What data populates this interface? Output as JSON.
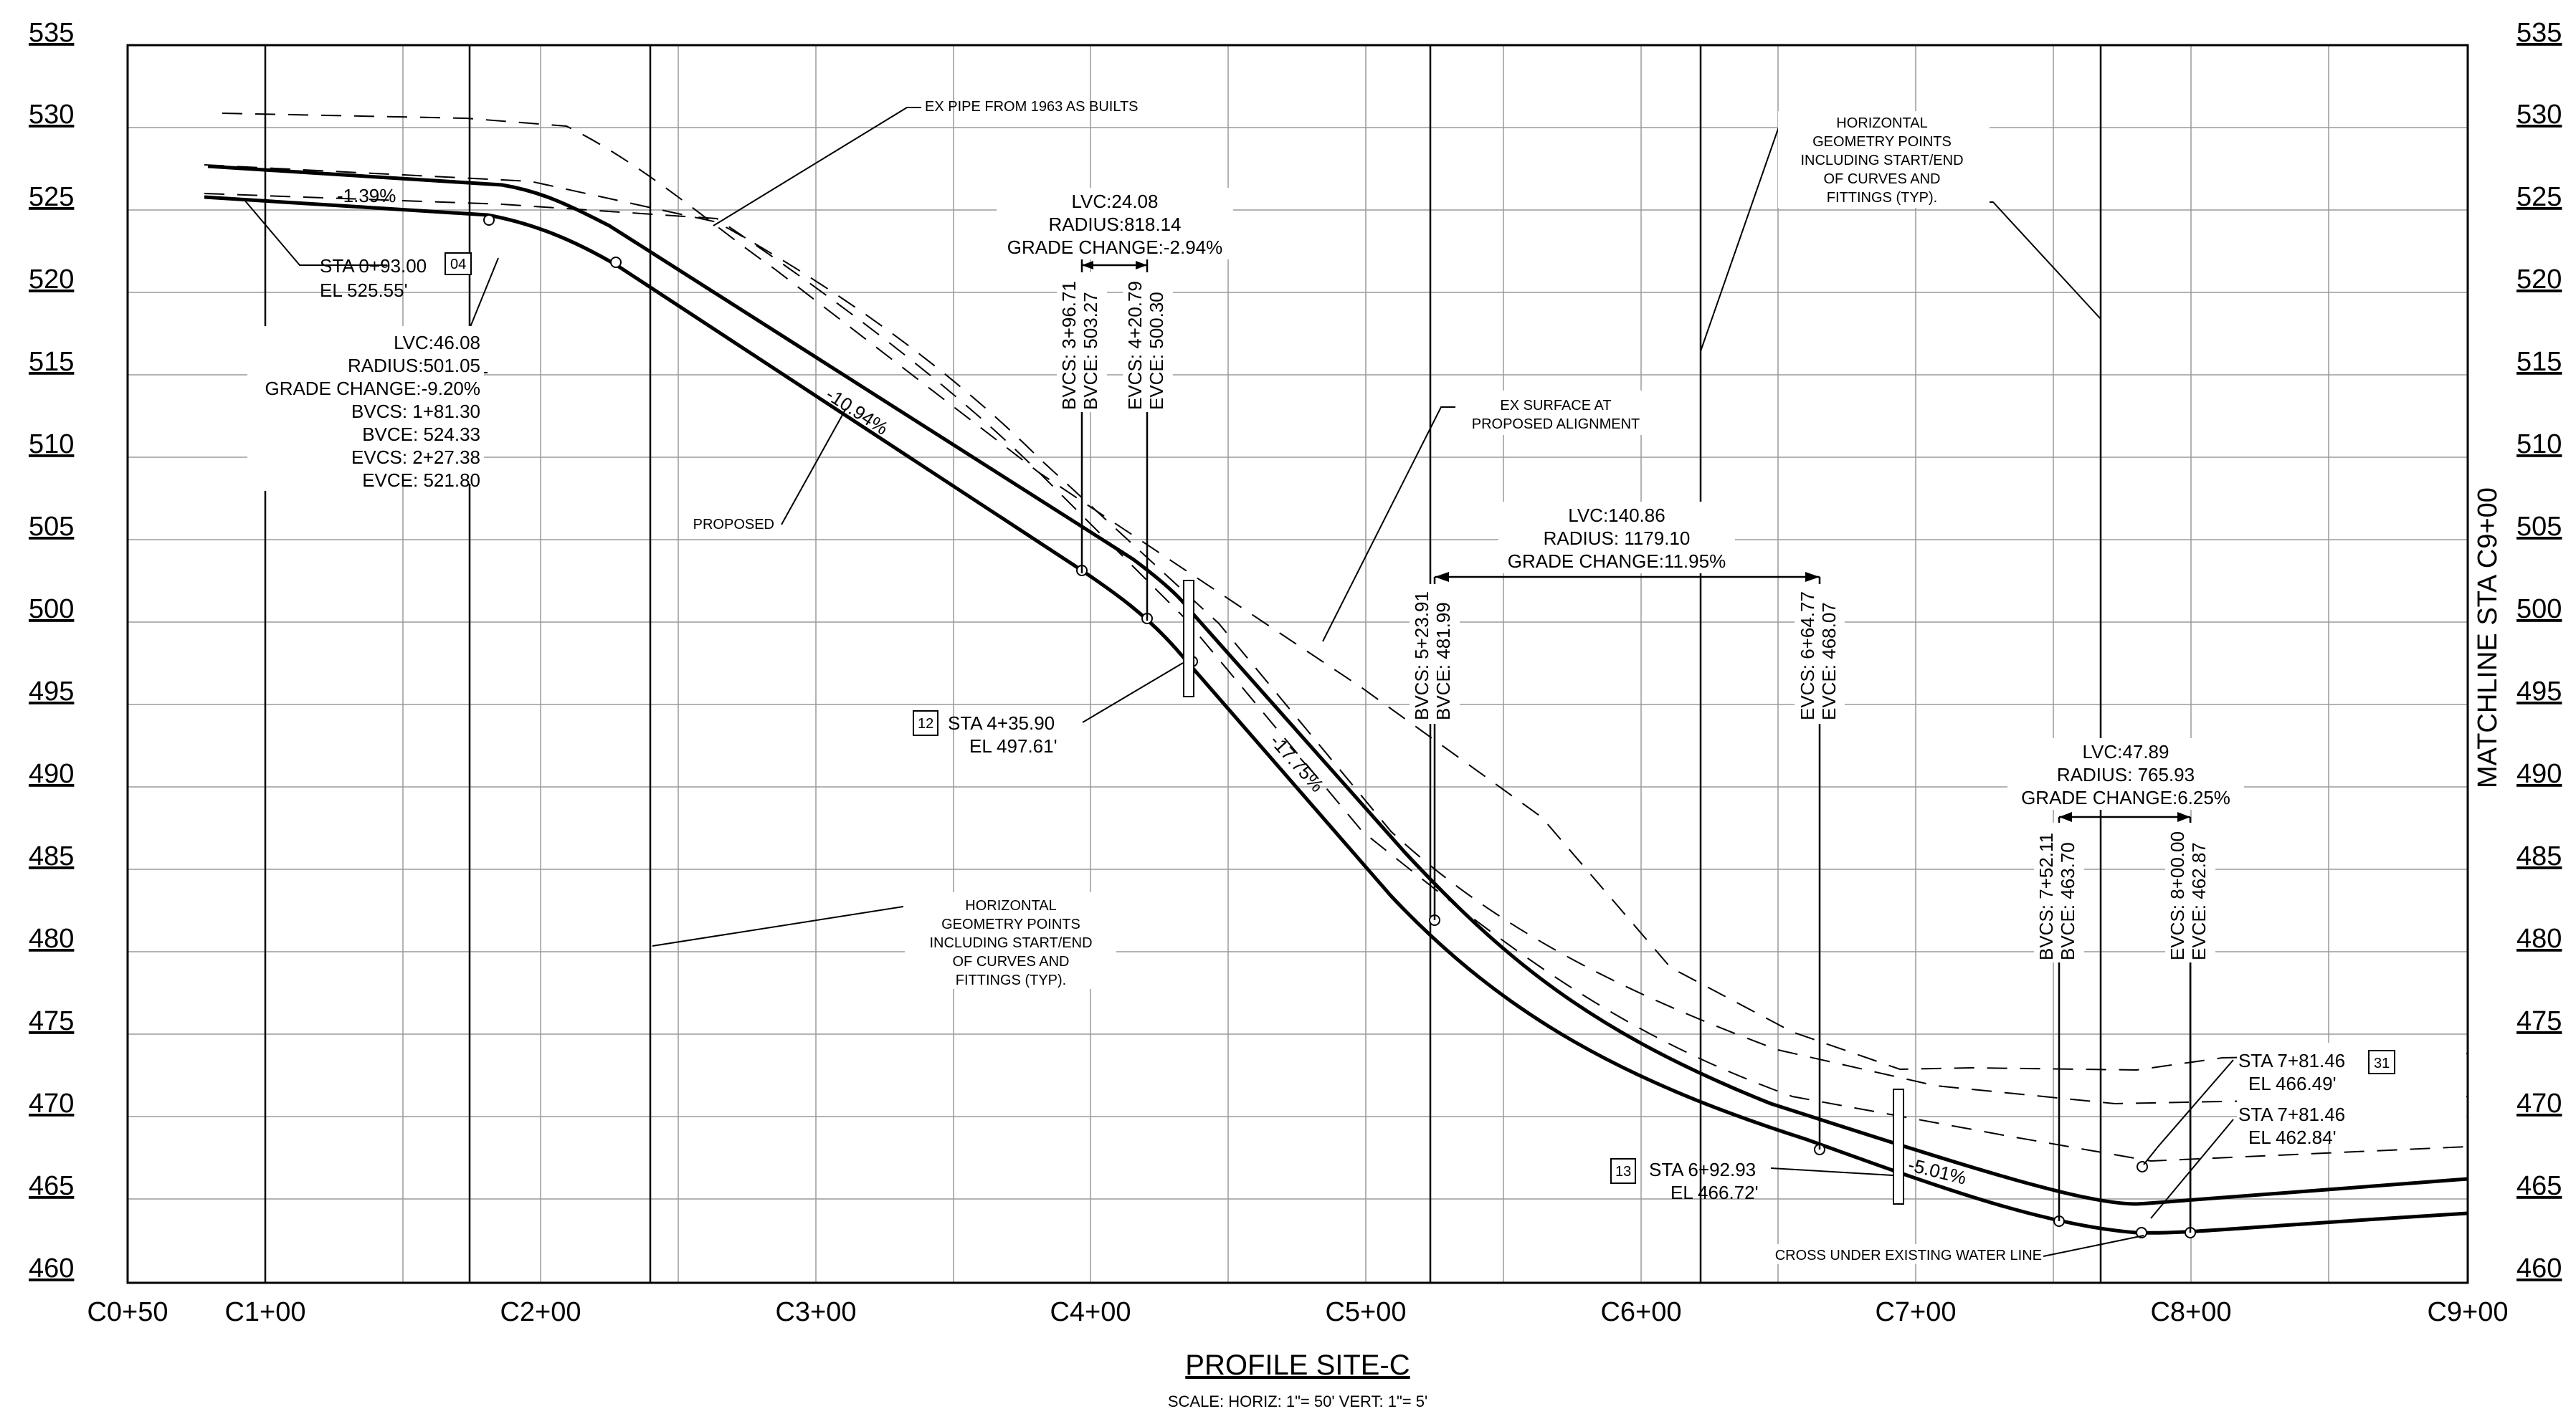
{
  "profile": {
    "title": "PROFILE SITE-C",
    "scale": "SCALE: HORIZ: 1\"= 50'  VERT: 1\"= 5'",
    "matchline": "MATCHLINE STA C9+00",
    "elevations": [
      "535",
      "530",
      "525",
      "520",
      "515",
      "510",
      "505",
      "500",
      "495",
      "490",
      "485",
      "480",
      "475",
      "470",
      "465",
      "460"
    ],
    "stations": [
      "C0+50",
      "C1+00",
      "C2+00",
      "C3+00",
      "C4+00",
      "C5+00",
      "C6+00",
      "C7+00",
      "C8+00",
      "C9+00"
    ]
  },
  "callouts": {
    "ex_pipe": "EX PIPE FROM 1963 AS BUILTS",
    "horiz_top": [
      "HORIZONTAL",
      "GEOMETRY POINTS",
      "INCLUDING START/END",
      "OF CURVES AND",
      "FITTINGS (TYP)."
    ],
    "horiz_bottom": [
      "HORIZONTAL",
      "GEOMETRY POINTS",
      "INCLUDING START/END",
      "OF CURVES AND",
      "FITTINGS (TYP)."
    ],
    "ex_surface": [
      "EX SURFACE AT",
      "PROPOSED ALIGNMENT"
    ],
    "proposed": "PROPOSED",
    "cross_under": "CROSS UNDER EXISTING WATER LINE"
  },
  "grades": {
    "g1": "-1.39%",
    "g2": "-10.94%",
    "g3": "-17.75%",
    "g4": "-5.01%"
  },
  "stations_points": {
    "p04": {
      "tag": "04",
      "sta": "STA 0+93.00",
      "el": "EL 525.55'"
    },
    "p12": {
      "tag": "12",
      "sta": "STA 4+35.90",
      "el": "EL 497.61'"
    },
    "p13": {
      "tag": "13",
      "sta": "STA 6+92.93",
      "el": "EL 466.72'"
    },
    "p31a": {
      "tag": "31",
      "sta": "STA 7+81.46",
      "el": "EL 466.49'"
    },
    "p31b": {
      "sta": "STA 7+81.46",
      "el": "EL 462.84'"
    }
  },
  "curves": {
    "vc1": {
      "lines": [
        "LVC:46.08",
        "RADIUS:501.05",
        "GRADE CHANGE:-9.20%",
        "BVCS: 1+81.30",
        "BVCE: 524.33",
        "EVCS: 2+27.38",
        "EVCE: 521.80"
      ]
    },
    "vc2": {
      "lines": [
        "LVC:24.08",
        "RADIUS:818.14",
        "GRADE CHANGE:-2.94%"
      ],
      "bvcs": "BVCS: 3+96.71",
      "bvce": "BVCE: 503.27",
      "evcs": "EVCS: 4+20.79",
      "evce": "EVCE: 500.30"
    },
    "vc3": {
      "lines": [
        "LVC:140.86",
        "RADIUS: 1179.10",
        "GRADE CHANGE:11.95%"
      ],
      "bvcs": "BVCS: 5+23.91",
      "bvce": "BVCE: 481.99",
      "evcs": "EVCS: 6+64.77",
      "evce": "EVCE: 468.07"
    },
    "vc4": {
      "lines": [
        "LVC:47.89",
        "RADIUS: 765.93",
        "GRADE CHANGE:6.25%"
      ],
      "bvcs": "BVCS: 7+52.11",
      "bvce": "BVCE: 463.70",
      "evcs": "EVCS: 8+00.00",
      "evce": "EVCE: 462.87"
    }
  }
}
